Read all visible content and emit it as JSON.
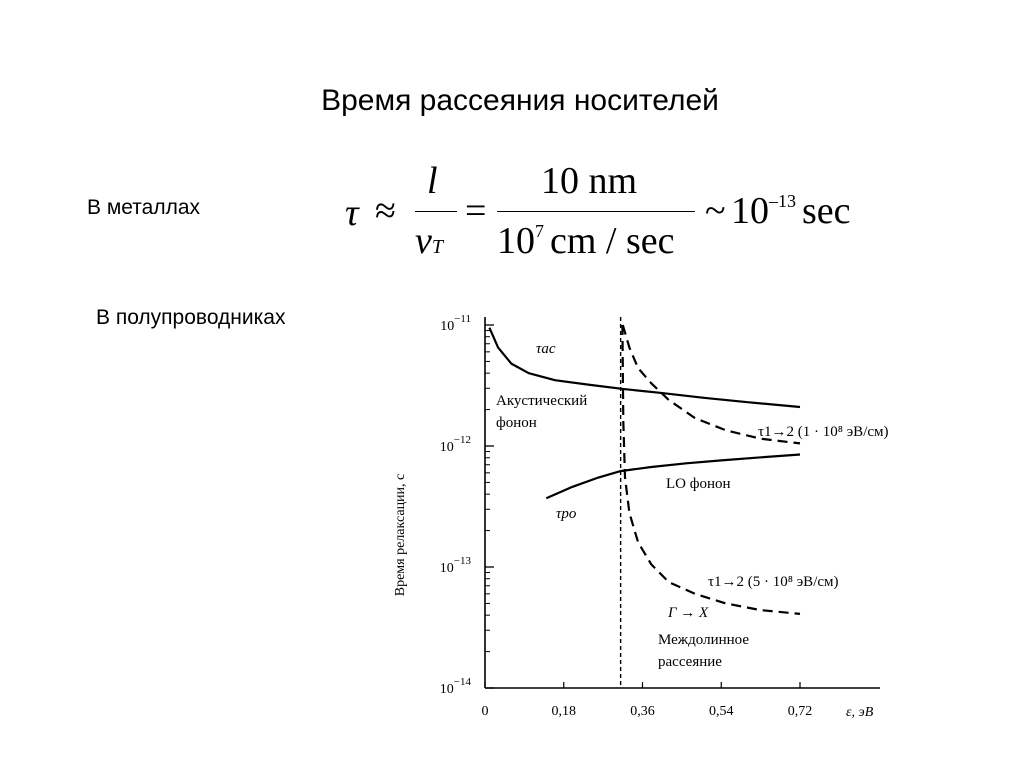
{
  "slide": {
    "title": "Время рассеяния носителей",
    "metals_label": "В металлах",
    "semiconductors_label": "В полупроводниках"
  },
  "formula": {
    "tau": "τ",
    "approx": "≈",
    "num1": "l",
    "den1_base": "v",
    "den1_sub": "T",
    "equals": "=",
    "num2": "10 nm",
    "den2_base": "10",
    "den2_sup": "7",
    "den2_tail": "cm / sec",
    "tilde": "~",
    "result_base": "10",
    "result_sup": "–13",
    "result_unit": "sec"
  },
  "chart_data": {
    "type": "line",
    "x_scale": "linear",
    "y_scale": "log",
    "ylabel": "Время релаксации, с",
    "xlabel": "ε, эВ",
    "xlim": [
      0,
      0.72
    ],
    "ylim": [
      1e-14,
      1e-11
    ],
    "x_ticks": [
      "0",
      "0,18",
      "0,36",
      "0,54",
      "0,72"
    ],
    "y_ticks": [
      {
        "base": "10",
        "exp": "−14"
      },
      {
        "base": "10",
        "exp": "−13"
      },
      {
        "base": "10",
        "exp": "−12"
      },
      {
        "base": "10",
        "exp": "−11"
      }
    ],
    "threshold_x": 0.31,
    "series": [
      {
        "name": "τac",
        "style": "solid",
        "points": [
          [
            0.01,
            9.5e-12
          ],
          [
            0.03,
            6.5e-12
          ],
          [
            0.06,
            4.8e-12
          ],
          [
            0.1,
            4e-12
          ],
          [
            0.16,
            3.5e-12
          ],
          [
            0.24,
            3.2e-12
          ],
          [
            0.32,
            2.95e-12
          ],
          [
            0.4,
            2.75e-12
          ],
          [
            0.5,
            2.5e-12
          ],
          [
            0.6,
            2.3e-12
          ],
          [
            0.72,
            2.1e-12
          ]
        ]
      },
      {
        "name": "τpo",
        "style": "solid",
        "points": [
          [
            0.14,
            3.7e-13
          ],
          [
            0.2,
            4.6e-13
          ],
          [
            0.26,
            5.5e-13
          ],
          [
            0.31,
            6.2e-13
          ],
          [
            0.38,
            6.7e-13
          ],
          [
            0.46,
            7.2e-13
          ],
          [
            0.54,
            7.6e-13
          ],
          [
            0.62,
            8e-13
          ],
          [
            0.72,
            8.5e-13
          ]
        ]
      },
      {
        "name": "τ1→2 (1·10⁸ эВ/см)",
        "style": "dashed",
        "points": [
          [
            0.315,
            1e-11
          ],
          [
            0.33,
            6.5e-12
          ],
          [
            0.35,
            4.4e-12
          ],
          [
            0.38,
            3.3e-12
          ],
          [
            0.42,
            2.4e-12
          ],
          [
            0.48,
            1.7e-12
          ],
          [
            0.55,
            1.35e-12
          ],
          [
            0.63,
            1.15e-12
          ],
          [
            0.72,
            1.05e-12
          ]
        ]
      },
      {
        "name": "τ1→2 (5·10⁸ эВ/см)",
        "style": "dashed",
        "points": [
          [
            0.314,
            1e-11
          ],
          [
            0.316,
            1.6e-12
          ],
          [
            0.32,
            5.5e-13
          ],
          [
            0.33,
            2.8e-13
          ],
          [
            0.35,
            1.6e-13
          ],
          [
            0.38,
            1.05e-13
          ],
          [
            0.42,
            7.5e-14
          ],
          [
            0.48,
            6e-14
          ],
          [
            0.55,
            5e-14
          ],
          [
            0.63,
            4.4e-14
          ],
          [
            0.72,
            4.1e-14
          ]
        ]
      }
    ],
    "annotations": {
      "tau_ac": "τac",
      "acoustic_phonon_1": "Акустический",
      "acoustic_phonon_2": "фонон",
      "tau_12_low": "τ1→2 (1 · 10⁸ эВ/см)",
      "lo_phonon": "LO фонон",
      "tau_po": "τpo",
      "tau_12_high": "τ1→2 (5 · 10⁸ эВ/см)",
      "gamma_x": "Γ → X",
      "intervalley_1": "Междолинное",
      "intervalley_2": "рассеяние"
    }
  }
}
